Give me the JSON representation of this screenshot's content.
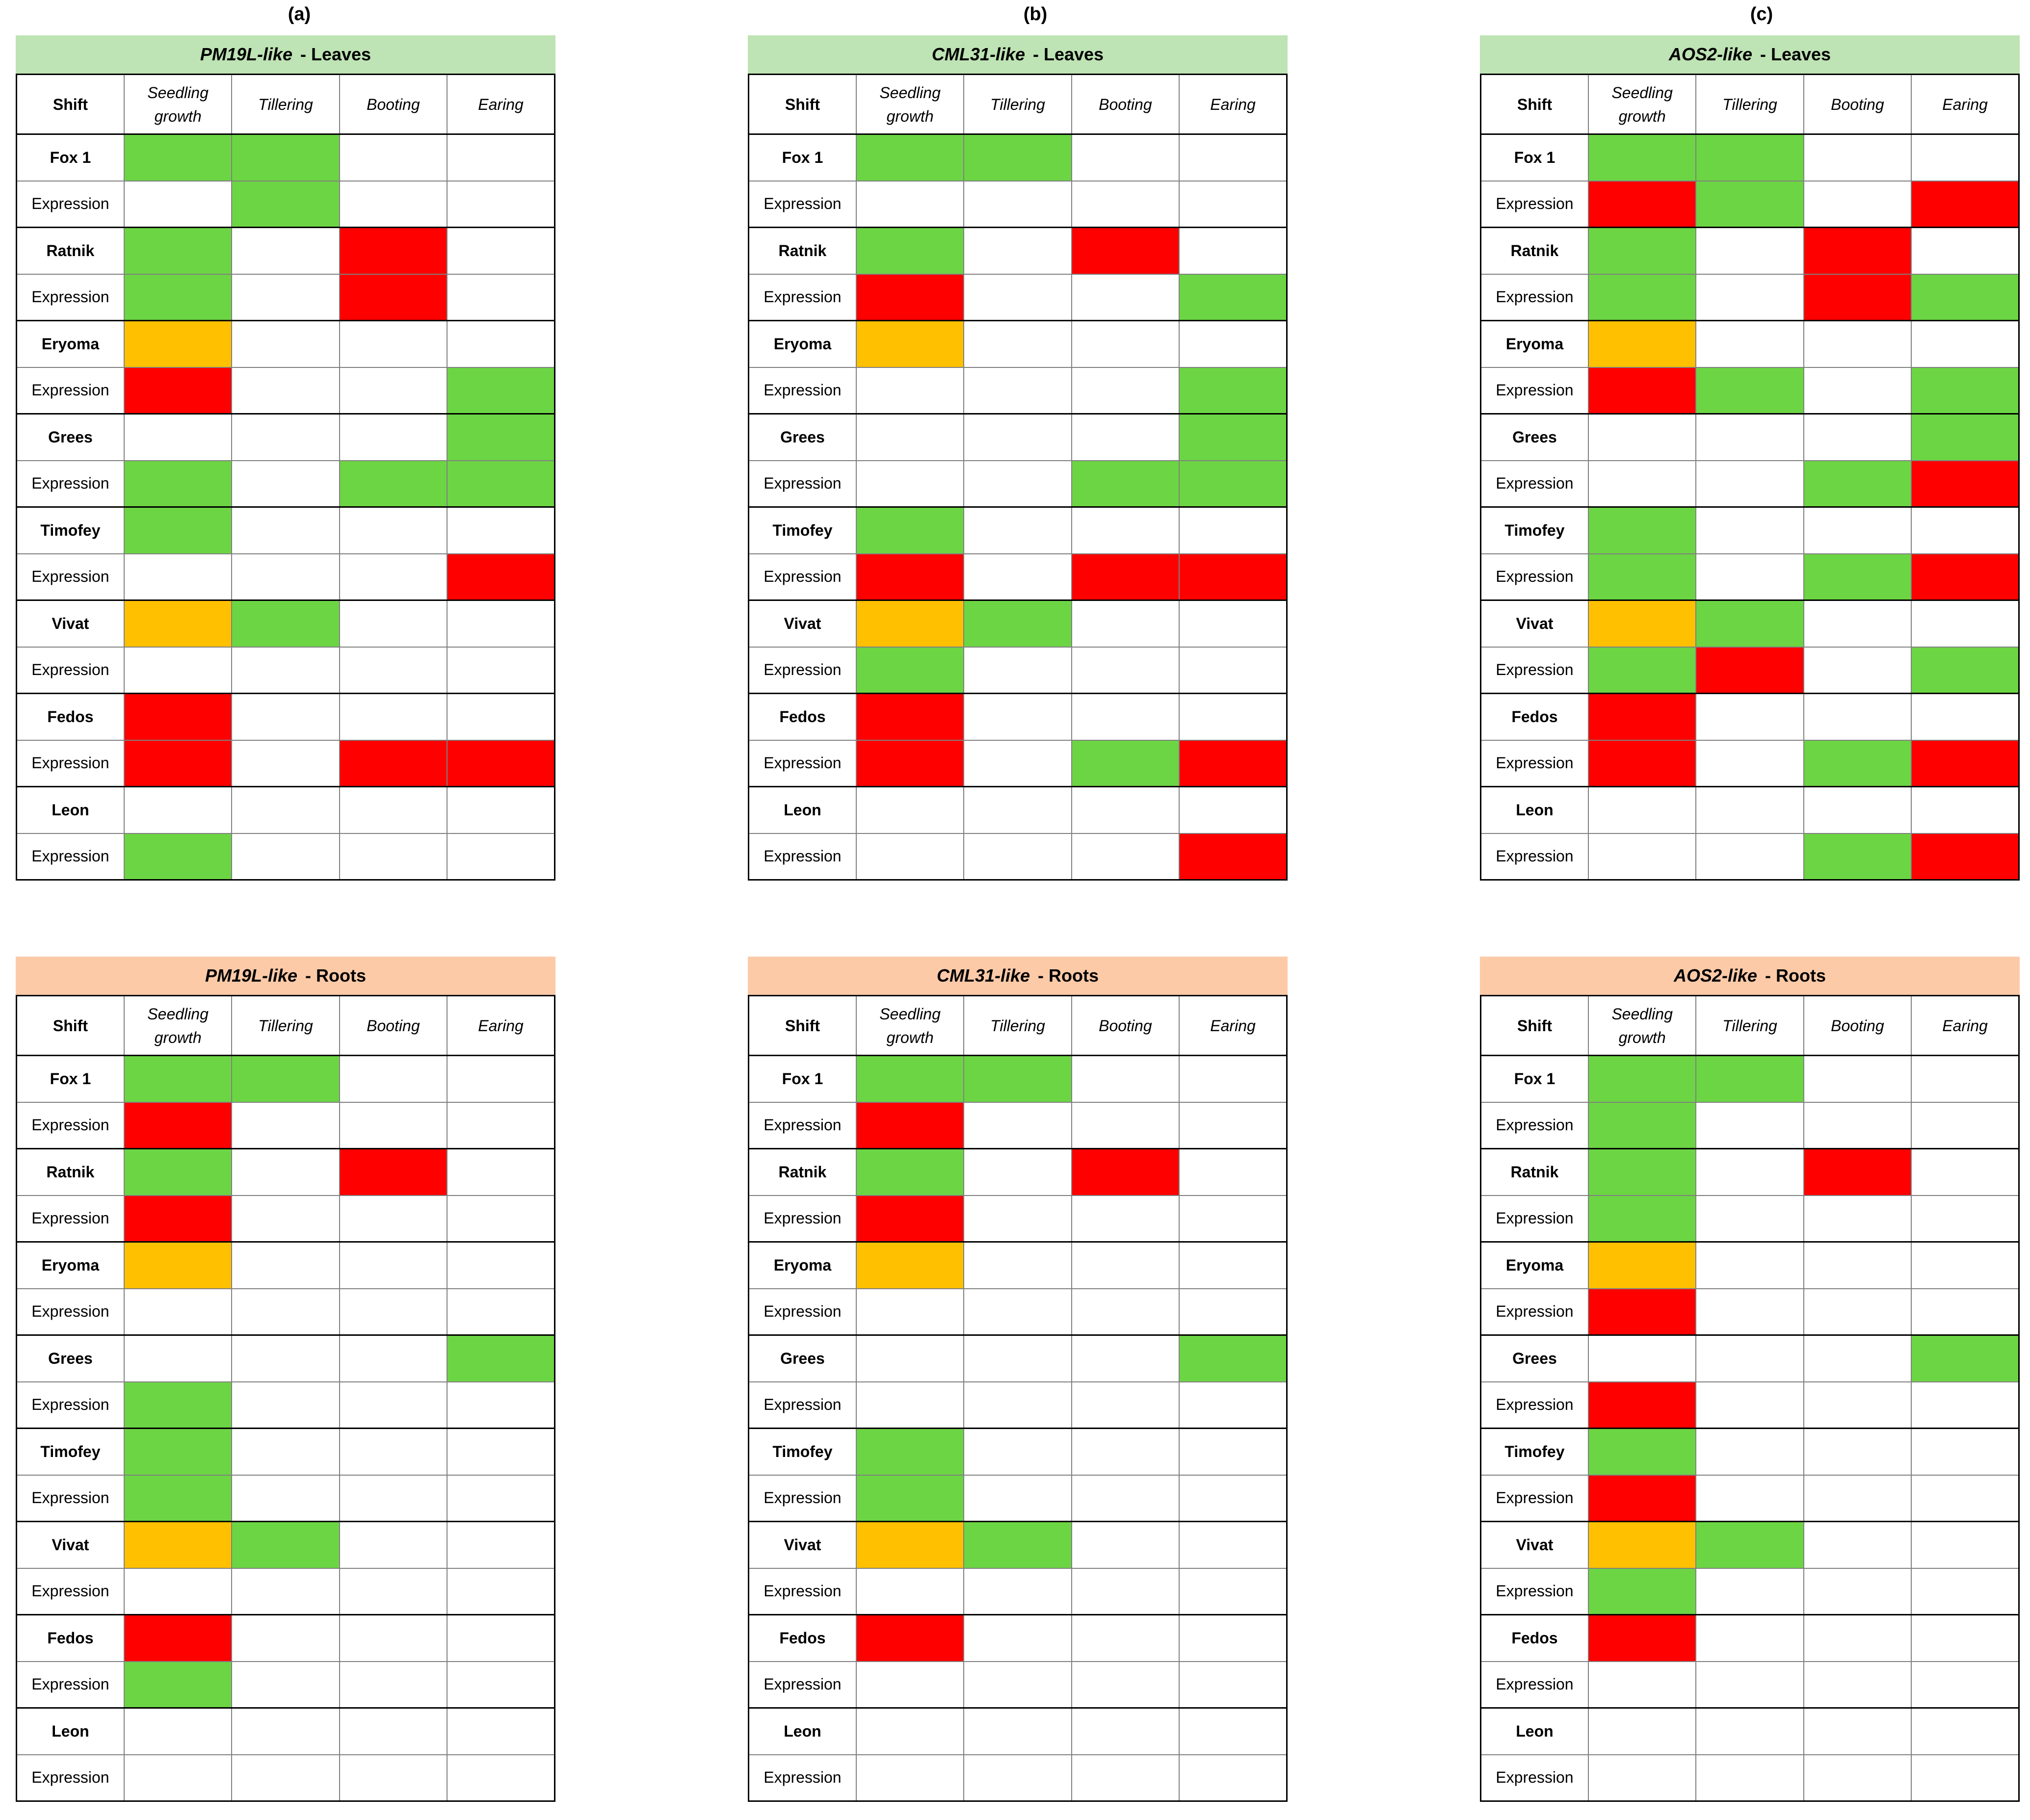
{
  "panel_letters": [
    "(a)",
    "(b)",
    "(c)"
  ],
  "header": {
    "shift": "Shift",
    "stages": [
      "Seedling growth",
      "Tillering",
      "Booting",
      "Earing"
    ]
  },
  "expression_label": "Expression",
  "colors": {
    "G": "#6cd543",
    "R": "#ff0000",
    "Y": "#ffc000",
    "W": "#ffffff",
    "leaves_header": "#bee3b4",
    "roots_header": "#fdcaa8"
  },
  "panels": [
    {
      "gene": "PM19L-like",
      "tissue": "- Leaves",
      "rows": [
        {
          "cultivar": "Fox 1",
          "shift": [
            "G",
            "G",
            "W",
            "W"
          ],
          "expression": [
            "W",
            "G",
            "W",
            "W"
          ]
        },
        {
          "cultivar": "Ratnik",
          "shift": [
            "G",
            "W",
            "R",
            "W"
          ],
          "expression": [
            "G",
            "W",
            "R",
            "W"
          ]
        },
        {
          "cultivar": "Eryoma",
          "shift": [
            "Y",
            "W",
            "W",
            "W"
          ],
          "expression": [
            "R",
            "W",
            "W",
            "G"
          ]
        },
        {
          "cultivar": "Grees",
          "shift": [
            "W",
            "W",
            "W",
            "G"
          ],
          "expression": [
            "G",
            "W",
            "G",
            "G"
          ]
        },
        {
          "cultivar": "Timofey",
          "shift": [
            "G",
            "W",
            "W",
            "W"
          ],
          "expression": [
            "W",
            "W",
            "W",
            "R"
          ]
        },
        {
          "cultivar": "Vivat",
          "shift": [
            "Y",
            "G",
            "W",
            "W"
          ],
          "expression": [
            "W",
            "W",
            "W",
            "W"
          ]
        },
        {
          "cultivar": "Fedos",
          "shift": [
            "R",
            "W",
            "W",
            "W"
          ],
          "expression": [
            "R",
            "W",
            "R",
            "R"
          ]
        },
        {
          "cultivar": "Leon",
          "shift": [
            "W",
            "W",
            "W",
            "W"
          ],
          "expression": [
            "G",
            "W",
            "W",
            "W"
          ]
        }
      ]
    },
    {
      "gene": "CML31-like",
      "tissue": "- Leaves",
      "rows": [
        {
          "cultivar": "Fox 1",
          "shift": [
            "G",
            "G",
            "W",
            "W"
          ],
          "expression": [
            "W",
            "W",
            "W",
            "W"
          ]
        },
        {
          "cultivar": "Ratnik",
          "shift": [
            "G",
            "W",
            "R",
            "W"
          ],
          "expression": [
            "R",
            "W",
            "W",
            "G"
          ]
        },
        {
          "cultivar": "Eryoma",
          "shift": [
            "Y",
            "W",
            "W",
            "W"
          ],
          "expression": [
            "W",
            "W",
            "W",
            "G"
          ]
        },
        {
          "cultivar": "Grees",
          "shift": [
            "W",
            "W",
            "W",
            "G"
          ],
          "expression": [
            "W",
            "W",
            "G",
            "G"
          ]
        },
        {
          "cultivar": "Timofey",
          "shift": [
            "G",
            "W",
            "W",
            "W"
          ],
          "expression": [
            "R",
            "W",
            "R",
            "R"
          ]
        },
        {
          "cultivar": "Vivat",
          "shift": [
            "Y",
            "G",
            "W",
            "W"
          ],
          "expression": [
            "G",
            "W",
            "W",
            "W"
          ]
        },
        {
          "cultivar": "Fedos",
          "shift": [
            "R",
            "W",
            "W",
            "W"
          ],
          "expression": [
            "R",
            "W",
            "G",
            "R"
          ]
        },
        {
          "cultivar": "Leon",
          "shift": [
            "W",
            "W",
            "W",
            "W"
          ],
          "expression": [
            "W",
            "W",
            "W",
            "R"
          ]
        }
      ]
    },
    {
      "gene": "AOS2-like",
      "tissue": "- Leaves",
      "rows": [
        {
          "cultivar": "Fox 1",
          "shift": [
            "G",
            "G",
            "W",
            "W"
          ],
          "expression": [
            "R",
            "G",
            "W",
            "R"
          ]
        },
        {
          "cultivar": "Ratnik",
          "shift": [
            "G",
            "W",
            "R",
            "W"
          ],
          "expression": [
            "G",
            "W",
            "R",
            "G"
          ]
        },
        {
          "cultivar": "Eryoma",
          "shift": [
            "Y",
            "W",
            "W",
            "W"
          ],
          "expression": [
            "R",
            "G",
            "W",
            "G"
          ]
        },
        {
          "cultivar": "Grees",
          "shift": [
            "W",
            "W",
            "W",
            "G"
          ],
          "expression": [
            "W",
            "W",
            "G",
            "R"
          ]
        },
        {
          "cultivar": "Timofey",
          "shift": [
            "G",
            "W",
            "W",
            "W"
          ],
          "expression": [
            "G",
            "W",
            "G",
            "R"
          ]
        },
        {
          "cultivar": "Vivat",
          "shift": [
            "Y",
            "G",
            "W",
            "W"
          ],
          "expression": [
            "G",
            "R",
            "W",
            "G"
          ]
        },
        {
          "cultivar": "Fedos",
          "shift": [
            "R",
            "W",
            "W",
            "W"
          ],
          "expression": [
            "R",
            "W",
            "G",
            "R"
          ]
        },
        {
          "cultivar": "Leon",
          "shift": [
            "W",
            "W",
            "W",
            "W"
          ],
          "expression": [
            "W",
            "W",
            "G",
            "R"
          ]
        }
      ]
    },
    {
      "gene": "PM19L-like",
      "tissue": "- Roots",
      "rows": [
        {
          "cultivar": "Fox 1",
          "shift": [
            "G",
            "G",
            "W",
            "W"
          ],
          "expression": [
            "R",
            "W",
            "W",
            "W"
          ]
        },
        {
          "cultivar": "Ratnik",
          "shift": [
            "G",
            "W",
            "R",
            "W"
          ],
          "expression": [
            "R",
            "W",
            "W",
            "W"
          ]
        },
        {
          "cultivar": "Eryoma",
          "shift": [
            "Y",
            "W",
            "W",
            "W"
          ],
          "expression": [
            "W",
            "W",
            "W",
            "W"
          ]
        },
        {
          "cultivar": "Grees",
          "shift": [
            "W",
            "W",
            "W",
            "G"
          ],
          "expression": [
            "G",
            "W",
            "W",
            "W"
          ]
        },
        {
          "cultivar": "Timofey",
          "shift": [
            "G",
            "W",
            "W",
            "W"
          ],
          "expression": [
            "G",
            "W",
            "W",
            "W"
          ]
        },
        {
          "cultivar": "Vivat",
          "shift": [
            "Y",
            "G",
            "W",
            "W"
          ],
          "expression": [
            "W",
            "W",
            "W",
            "W"
          ]
        },
        {
          "cultivar": "Fedos",
          "shift": [
            "R",
            "W",
            "W",
            "W"
          ],
          "expression": [
            "G",
            "W",
            "W",
            "W"
          ]
        },
        {
          "cultivar": "Leon",
          "shift": [
            "W",
            "W",
            "W",
            "W"
          ],
          "expression": [
            "W",
            "W",
            "W",
            "W"
          ]
        }
      ]
    },
    {
      "gene": "CML31-like",
      "tissue": "- Roots",
      "rows": [
        {
          "cultivar": "Fox 1",
          "shift": [
            "G",
            "G",
            "W",
            "W"
          ],
          "expression": [
            "R",
            "W",
            "W",
            "W"
          ]
        },
        {
          "cultivar": "Ratnik",
          "shift": [
            "G",
            "W",
            "R",
            "W"
          ],
          "expression": [
            "R",
            "W",
            "W",
            "W"
          ]
        },
        {
          "cultivar": "Eryoma",
          "shift": [
            "Y",
            "W",
            "W",
            "W"
          ],
          "expression": [
            "W",
            "W",
            "W",
            "W"
          ]
        },
        {
          "cultivar": "Grees",
          "shift": [
            "W",
            "W",
            "W",
            "G"
          ],
          "expression": [
            "W",
            "W",
            "W",
            "W"
          ]
        },
        {
          "cultivar": "Timofey",
          "shift": [
            "G",
            "W",
            "W",
            "W"
          ],
          "expression": [
            "G",
            "W",
            "W",
            "W"
          ]
        },
        {
          "cultivar": "Vivat",
          "shift": [
            "Y",
            "G",
            "W",
            "W"
          ],
          "expression": [
            "W",
            "W",
            "W",
            "W"
          ]
        },
        {
          "cultivar": "Fedos",
          "shift": [
            "R",
            "W",
            "W",
            "W"
          ],
          "expression": [
            "W",
            "W",
            "W",
            "W"
          ]
        },
        {
          "cultivar": "Leon",
          "shift": [
            "W",
            "W",
            "W",
            "W"
          ],
          "expression": [
            "W",
            "W",
            "W",
            "W"
          ]
        }
      ]
    },
    {
      "gene": "AOS2-like",
      "tissue": "- Roots",
      "rows": [
        {
          "cultivar": "Fox 1",
          "shift": [
            "G",
            "G",
            "W",
            "W"
          ],
          "expression": [
            "G",
            "W",
            "W",
            "W"
          ]
        },
        {
          "cultivar": "Ratnik",
          "shift": [
            "G",
            "W",
            "R",
            "W"
          ],
          "expression": [
            "G",
            "W",
            "W",
            "W"
          ]
        },
        {
          "cultivar": "Eryoma",
          "shift": [
            "Y",
            "W",
            "W",
            "W"
          ],
          "expression": [
            "R",
            "W",
            "W",
            "W"
          ]
        },
        {
          "cultivar": "Grees",
          "shift": [
            "W",
            "W",
            "W",
            "G"
          ],
          "expression": [
            "R",
            "W",
            "W",
            "W"
          ]
        },
        {
          "cultivar": "Timofey",
          "shift": [
            "G",
            "W",
            "W",
            "W"
          ],
          "expression": [
            "R",
            "W",
            "W",
            "W"
          ]
        },
        {
          "cultivar": "Vivat",
          "shift": [
            "Y",
            "G",
            "W",
            "W"
          ],
          "expression": [
            "G",
            "W",
            "W",
            "W"
          ]
        },
        {
          "cultivar": "Fedos",
          "shift": [
            "R",
            "W",
            "W",
            "W"
          ],
          "expression": [
            "W",
            "W",
            "W",
            "W"
          ]
        },
        {
          "cultivar": "Leon",
          "shift": [
            "W",
            "W",
            "W",
            "W"
          ],
          "expression": [
            "W",
            "W",
            "W",
            "W"
          ]
        }
      ]
    }
  ]
}
